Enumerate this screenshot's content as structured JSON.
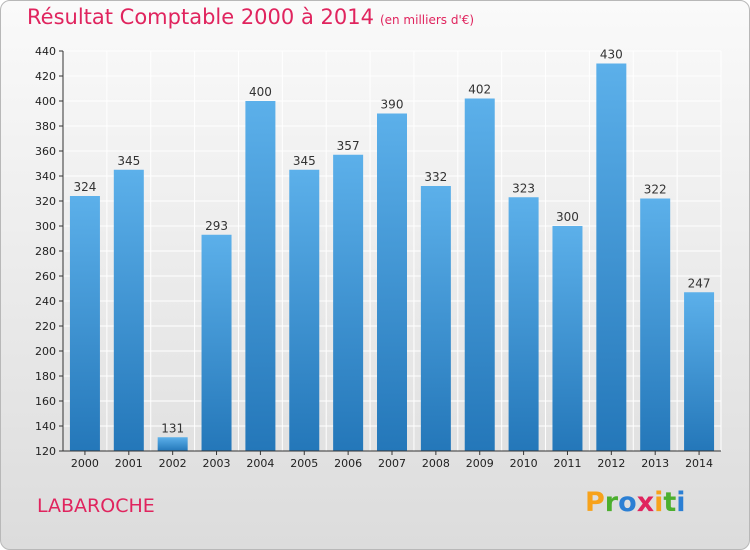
{
  "header": {
    "title": "Résultat Comptable 2000 à 2014",
    "unit": "(en milliers d'€)"
  },
  "footer": {
    "town": "LABAROCHE",
    "logo": [
      "P",
      "r",
      "o",
      "x",
      "i",
      "t",
      "i"
    ],
    "logo_colors": [
      "#f7a21b",
      "#4caf2e",
      "#2b7fd4",
      "#e0245e",
      "#f7a21b",
      "#4caf2e",
      "#2b7fd4"
    ]
  },
  "colors": {
    "bar_top": "#5cb0ea",
    "bar_bottom": "#2477b9",
    "grid": "#ffffff",
    "title": "#e0245e"
  },
  "chart_data": {
    "type": "bar",
    "title": "Résultat Comptable 2000 à 2014",
    "categories": [
      "2000",
      "2001",
      "2002",
      "2003",
      "2004",
      "2005",
      "2006",
      "2007",
      "2008",
      "2009",
      "2010",
      "2011",
      "2012",
      "2013",
      "2014"
    ],
    "values": [
      324,
      345,
      131,
      293,
      400,
      345,
      357,
      390,
      332,
      402,
      323,
      300,
      430,
      322,
      247
    ],
    "ylim": [
      120,
      440
    ],
    "yticks": [
      120,
      140,
      160,
      180,
      200,
      220,
      240,
      260,
      280,
      300,
      320,
      340,
      360,
      380,
      400,
      420,
      440
    ],
    "grid": true,
    "xlabel": "",
    "ylabel": ""
  }
}
